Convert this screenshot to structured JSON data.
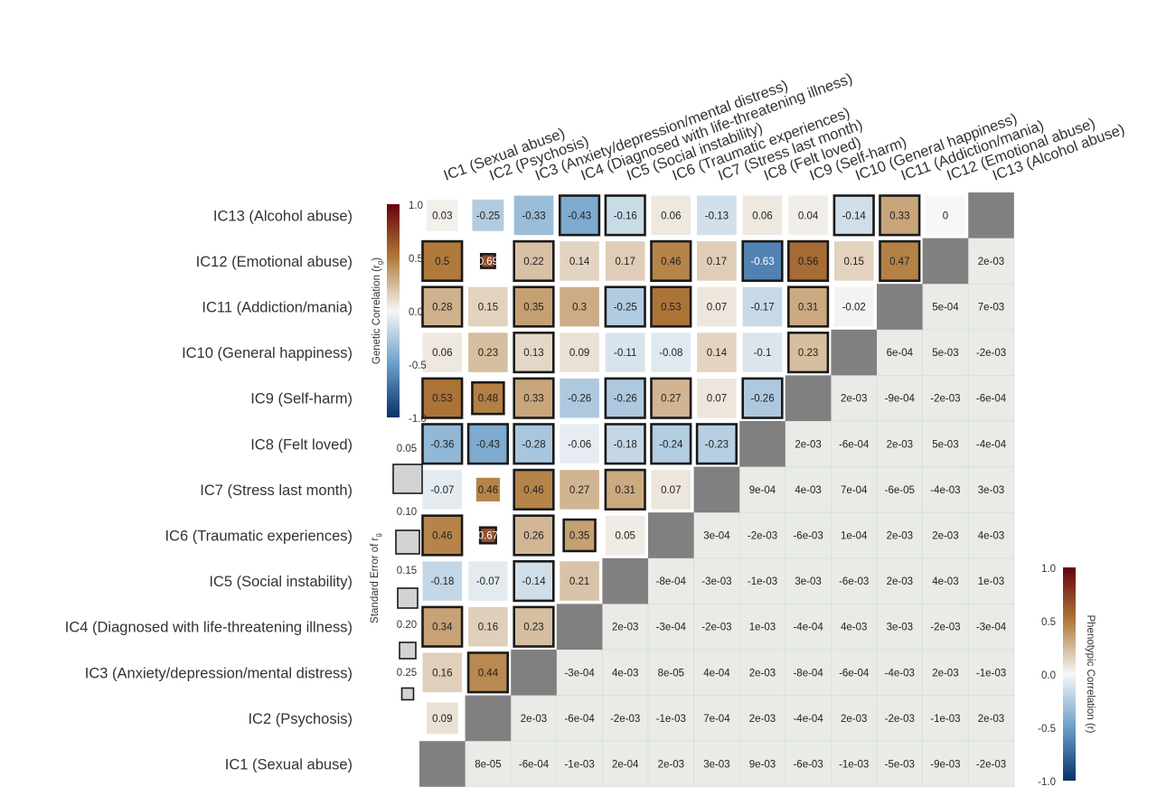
{
  "chart_data": {
    "type": "heatmap",
    "title": "",
    "labels": [
      "IC1 (Sexual abuse)",
      "IC2 (Psychosis)",
      "IC3 (Anxiety/depression/mental distress)",
      "IC4 (Diagnosed with life-threatening illness)",
      "IC5 (Social instability)",
      "IC6 (Traumatic experiences)",
      "IC7 (Stress last month)",
      "IC8 (Felt loved)",
      "IC9 (Self-harm)",
      "IC10 (General happiness)",
      "IC11 (Addiction/mania)",
      "IC12 (Emotional abuse)",
      "IC13 (Alcohol abuse)"
    ],
    "genetic_legend": {
      "title": "Genetic Correlation (r",
      "title_sub": "g",
      "title_close": ")",
      "ticks": [
        "1.0",
        "0.5",
        "0.0",
        "-0.5",
        "-1.0"
      ],
      "range": [
        -1,
        1
      ]
    },
    "phenotypic_legend": {
      "title": "Phenotypic Correlation (r)",
      "ticks": [
        "1.0",
        "0.5",
        "0.0",
        "-0.5",
        "-1.0"
      ],
      "range": [
        -1,
        1
      ]
    },
    "se_legend": {
      "title": "Standard Error of r",
      "title_sub": "g",
      "ticks": [
        "0.05",
        "0.10",
        "0.15",
        "0.20",
        "0.25"
      ],
      "values": [
        0.05,
        0.1,
        0.15,
        0.2,
        0.25
      ]
    },
    "genetic_rows": [
      {
        "row": "IC13 (Alcohol abuse)",
        "cells": [
          {
            "col": 1,
            "value": 0.03,
            "label": "0.03",
            "se": 0.1,
            "sig": false
          },
          {
            "col": 2,
            "value": -0.25,
            "label": "-0.25",
            "se": 0.1,
            "sig": false
          },
          {
            "col": 3,
            "value": -0.33,
            "label": "-0.33",
            "se": 0.05,
            "sig": false
          },
          {
            "col": 4,
            "value": -0.43,
            "label": "-0.43",
            "se": 0.05,
            "sig": true
          },
          {
            "col": 5,
            "value": -0.16,
            "label": "-0.16",
            "se": 0.05,
            "sig": true
          },
          {
            "col": 6,
            "value": 0.06,
            "label": "0.06",
            "se": 0.05,
            "sig": false
          },
          {
            "col": 7,
            "value": -0.13,
            "label": "-0.13",
            "se": 0.05,
            "sig": false
          },
          {
            "col": 8,
            "value": 0.06,
            "label": "0.06",
            "se": 0.05,
            "sig": false
          },
          {
            "col": 9,
            "value": 0.04,
            "label": "0.04",
            "se": 0.05,
            "sig": false
          },
          {
            "col": 10,
            "value": -0.14,
            "label": "-0.14",
            "se": 0.05,
            "sig": true
          },
          {
            "col": 11,
            "value": 0.33,
            "label": "0.33",
            "se": 0.05,
            "sig": true
          },
          {
            "col": 12,
            "value": 0,
            "label": "0",
            "se": 0.05,
            "sig": false
          }
        ]
      },
      {
        "row": "IC12 (Emotional abuse)",
        "cells": [
          {
            "col": 1,
            "value": 0.5,
            "label": "0.5",
            "se": 0.05,
            "sig": true
          },
          {
            "col": 2,
            "value": 0.69,
            "label": "0.69",
            "se": 0.25,
            "sig": true
          },
          {
            "col": 3,
            "value": 0.22,
            "label": "0.22",
            "se": 0.05,
            "sig": true
          },
          {
            "col": 4,
            "value": 0.14,
            "label": "0.14",
            "se": 0.05,
            "sig": false
          },
          {
            "col": 5,
            "value": 0.17,
            "label": "0.17",
            "se": 0.05,
            "sig": false
          },
          {
            "col": 6,
            "value": 0.46,
            "label": "0.46",
            "se": 0.05,
            "sig": true
          },
          {
            "col": 7,
            "value": 0.17,
            "label": "0.17",
            "se": 0.05,
            "sig": false
          },
          {
            "col": 8,
            "value": -0.63,
            "label": "-0.63",
            "se": 0.05,
            "sig": true
          },
          {
            "col": 9,
            "value": 0.56,
            "label": "0.56",
            "se": 0.05,
            "sig": true
          },
          {
            "col": 10,
            "value": 0.15,
            "label": "0.15",
            "se": 0.05,
            "sig": false
          },
          {
            "col": 11,
            "value": 0.47,
            "label": "0.47",
            "se": 0.05,
            "sig": true
          }
        ]
      },
      {
        "row": "IC11 (Addiction/mania)",
        "cells": [
          {
            "col": 1,
            "value": 0.28,
            "label": "0.28",
            "se": 0.05,
            "sig": true
          },
          {
            "col": 2,
            "value": 0.15,
            "label": "0.15",
            "se": 0.05,
            "sig": false
          },
          {
            "col": 3,
            "value": 0.35,
            "label": "0.35",
            "se": 0.05,
            "sig": true
          },
          {
            "col": 4,
            "value": 0.3,
            "label": "0.3",
            "se": 0.05,
            "sig": false
          },
          {
            "col": 5,
            "value": -0.25,
            "label": "-0.25",
            "se": 0.05,
            "sig": true
          },
          {
            "col": 6,
            "value": 0.53,
            "label": "0.53",
            "se": 0.05,
            "sig": true
          },
          {
            "col": 7,
            "value": 0.07,
            "label": "0.07",
            "se": 0.05,
            "sig": false
          },
          {
            "col": 8,
            "value": -0.17,
            "label": "-0.17",
            "se": 0.05,
            "sig": false
          },
          {
            "col": 9,
            "value": 0.31,
            "label": "0.31",
            "se": 0.05,
            "sig": true
          },
          {
            "col": 10,
            "value": -0.02,
            "label": "-0.02",
            "se": 0.05,
            "sig": false
          }
        ]
      },
      {
        "row": "IC10 (General happiness)",
        "cells": [
          {
            "col": 1,
            "value": 0.06,
            "label": "0.06",
            "se": 0.05,
            "sig": false
          },
          {
            "col": 2,
            "value": 0.23,
            "label": "0.23",
            "se": 0.05,
            "sig": false
          },
          {
            "col": 3,
            "value": 0.13,
            "label": "0.13",
            "se": 0.05,
            "sig": true
          },
          {
            "col": 4,
            "value": 0.09,
            "label": "0.09",
            "se": 0.05,
            "sig": false
          },
          {
            "col": 5,
            "value": -0.11,
            "label": "-0.11",
            "se": 0.05,
            "sig": false
          },
          {
            "col": 6,
            "value": -0.08,
            "label": "-0.08",
            "se": 0.05,
            "sig": false
          },
          {
            "col": 7,
            "value": 0.14,
            "label": "0.14",
            "se": 0.05,
            "sig": false
          },
          {
            "col": 8,
            "value": -0.1,
            "label": "-0.1",
            "se": 0.05,
            "sig": false
          },
          {
            "col": 9,
            "value": 0.23,
            "label": "0.23",
            "se": 0.05,
            "sig": true
          }
        ]
      },
      {
        "row": "IC9 (Self-harm)",
        "cells": [
          {
            "col": 1,
            "value": 0.53,
            "label": "0.53",
            "se": 0.05,
            "sig": true
          },
          {
            "col": 2,
            "value": 0.48,
            "label": "0.48",
            "se": 0.1,
            "sig": true
          },
          {
            "col": 3,
            "value": 0.33,
            "label": "0.33",
            "se": 0.05,
            "sig": true
          },
          {
            "col": 4,
            "value": -0.26,
            "label": "-0.26",
            "se": 0.05,
            "sig": false
          },
          {
            "col": 5,
            "value": -0.26,
            "label": "-0.26",
            "se": 0.05,
            "sig": true
          },
          {
            "col": 6,
            "value": 0.27,
            "label": "0.27",
            "se": 0.05,
            "sig": true
          },
          {
            "col": 7,
            "value": 0.07,
            "label": "0.07",
            "se": 0.05,
            "sig": false
          },
          {
            "col": 8,
            "value": -0.26,
            "label": "-0.26",
            "se": 0.05,
            "sig": true
          }
        ]
      },
      {
        "row": "IC8 (Felt loved)",
        "cells": [
          {
            "col": 1,
            "value": -0.36,
            "label": "-0.36",
            "se": 0.05,
            "sig": true
          },
          {
            "col": 2,
            "value": -0.43,
            "label": "-0.43",
            "se": 0.05,
            "sig": true
          },
          {
            "col": 3,
            "value": -0.28,
            "label": "-0.28",
            "se": 0.05,
            "sig": true
          },
          {
            "col": 4,
            "value": -0.06,
            "label": "-0.06",
            "se": 0.05,
            "sig": false
          },
          {
            "col": 5,
            "value": -0.18,
            "label": "-0.18",
            "se": 0.05,
            "sig": true
          },
          {
            "col": 6,
            "value": -0.24,
            "label": "-0.24",
            "se": 0.05,
            "sig": true
          },
          {
            "col": 7,
            "value": -0.23,
            "label": "-0.23",
            "se": 0.05,
            "sig": true
          }
        ]
      },
      {
        "row": "IC7 (Stress last month)",
        "cells": [
          {
            "col": 1,
            "value": -0.07,
            "label": "-0.07",
            "se": 0.05,
            "sig": false
          },
          {
            "col": 2,
            "value": 0.46,
            "label": "0.46",
            "se": 0.15,
            "sig": false
          },
          {
            "col": 3,
            "value": 0.46,
            "label": "0.46",
            "se": 0.05,
            "sig": true
          },
          {
            "col": 4,
            "value": 0.27,
            "label": "0.27",
            "se": 0.05,
            "sig": false
          },
          {
            "col": 5,
            "value": 0.31,
            "label": "0.31",
            "se": 0.05,
            "sig": true
          },
          {
            "col": 6,
            "value": 0.07,
            "label": "0.07",
            "se": 0.05,
            "sig": false
          }
        ]
      },
      {
        "row": "IC6 (Traumatic experiences)",
        "cells": [
          {
            "col": 1,
            "value": 0.46,
            "label": "0.46",
            "se": 0.05,
            "sig": true
          },
          {
            "col": 2,
            "value": 0.67,
            "label": "0.67",
            "se": 0.2,
            "sig": true
          },
          {
            "col": 3,
            "value": 0.26,
            "label": "0.26",
            "se": 0.05,
            "sig": true
          },
          {
            "col": 4,
            "value": 0.35,
            "label": "0.35",
            "se": 0.1,
            "sig": true
          },
          {
            "col": 5,
            "value": 0.05,
            "label": "0.05",
            "se": 0.05,
            "sig": false
          }
        ]
      },
      {
        "row": "IC5 (Social instability)",
        "cells": [
          {
            "col": 1,
            "value": -0.18,
            "label": "-0.18",
            "se": 0.05,
            "sig": false
          },
          {
            "col": 2,
            "value": -0.07,
            "label": "-0.07",
            "se": 0.05,
            "sig": false
          },
          {
            "col": 3,
            "value": -0.14,
            "label": "-0.14",
            "se": 0.05,
            "sig": true
          },
          {
            "col": 4,
            "value": 0.21,
            "label": "0.21",
            "se": 0.05,
            "sig": false
          }
        ]
      },
      {
        "row": "IC4 (Diagnosed with life-threatening illness)",
        "cells": [
          {
            "col": 1,
            "value": 0.34,
            "label": "0.34",
            "se": 0.05,
            "sig": true
          },
          {
            "col": 2,
            "value": 0.16,
            "label": "0.16",
            "se": 0.05,
            "sig": false
          },
          {
            "col": 3,
            "value": 0.23,
            "label": "0.23",
            "se": 0.05,
            "sig": true
          }
        ]
      },
      {
        "row": "IC3 (Anxiety/depression/mental distress)",
        "cells": [
          {
            "col": 1,
            "value": 0.16,
            "label": "0.16",
            "se": 0.05,
            "sig": false
          },
          {
            "col": 2,
            "value": 0.44,
            "label": "0.44",
            "se": 0.05,
            "sig": true
          }
        ]
      },
      {
        "row": "IC2 (Psychosis)",
        "cells": [
          {
            "col": 1,
            "value": 0.09,
            "label": "0.09",
            "se": 0.1,
            "sig": false
          }
        ]
      },
      {
        "row": "IC1 (Sexual abuse)",
        "cells": []
      }
    ],
    "phenotypic_rows": [
      {
        "row": "IC13 (Alcohol abuse)",
        "cells": []
      },
      {
        "row": "IC12 (Emotional abuse)",
        "cells": [
          "2e-03"
        ]
      },
      {
        "row": "IC11 (Addiction/mania)",
        "cells": [
          "5e-04",
          "7e-03"
        ]
      },
      {
        "row": "IC10 (General happiness)",
        "cells": [
          "6e-04",
          "5e-03",
          "-2e-03"
        ]
      },
      {
        "row": "IC9 (Self-harm)",
        "cells": [
          "2e-03",
          "-9e-04",
          "-2e-03",
          "-6e-04"
        ]
      },
      {
        "row": "IC8 (Felt loved)",
        "cells": [
          "2e-03",
          "-6e-04",
          "2e-03",
          "5e-03",
          "-4e-04"
        ]
      },
      {
        "row": "IC7 (Stress last month)",
        "cells": [
          "9e-04",
          "4e-03",
          "7e-04",
          "-6e-05",
          "-4e-03",
          "3e-03"
        ]
      },
      {
        "row": "IC6 (Traumatic experiences)",
        "cells": [
          "3e-04",
          "-2e-03",
          "-6e-03",
          "1e-04",
          "2e-03",
          "2e-03",
          "4e-03"
        ]
      },
      {
        "row": "IC5 (Social instability)",
        "cells": [
          "-8e-04",
          "-3e-03",
          "-1e-03",
          "3e-03",
          "-6e-03",
          "2e-03",
          "4e-03",
          "1e-03"
        ]
      },
      {
        "row": "IC4 (Diagnosed with life-threatening illness)",
        "cells": [
          "2e-03",
          "-3e-04",
          "-2e-03",
          "1e-03",
          "-4e-04",
          "4e-03",
          "3e-03",
          "-2e-03",
          "-3e-04"
        ]
      },
      {
        "row": "IC3 (Anxiety/depression/mental distress)",
        "cells": [
          "-3e-04",
          "4e-03",
          "8e-05",
          "4e-04",
          "2e-03",
          "-8e-04",
          "-6e-04",
          "-4e-03",
          "2e-03",
          "-1e-03"
        ]
      },
      {
        "row": "IC2 (Psychosis)",
        "cells": [
          "2e-03",
          "-6e-04",
          "-2e-03",
          "-1e-03",
          "7e-04",
          "2e-03",
          "-4e-04",
          "2e-03",
          "-2e-03",
          "-1e-03",
          "2e-03"
        ]
      },
      {
        "row": "IC1 (Sexual abuse)",
        "cells": [
          "8e-05",
          "-6e-04",
          "-1e-03",
          "2e-04",
          "2e-03",
          "3e-03",
          "9e-03",
          "-6e-03",
          "-1e-03",
          "-5e-03",
          "-9e-03",
          "-2e-03"
        ]
      }
    ]
  }
}
